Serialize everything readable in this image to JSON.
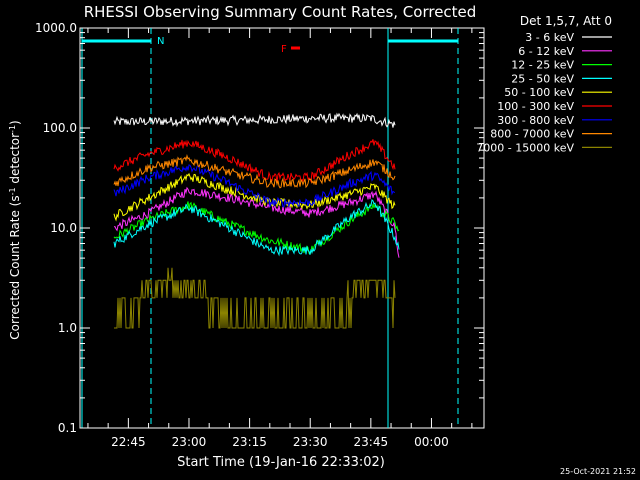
{
  "chart_data": {
    "type": "line",
    "title": "RHESSI Observing Summary Count Rates, Corrected",
    "xlabel": "Start Time (19-Jan-16 22:33:02)",
    "ylabel_main": "Corrected Count Rate (s",
    "ylabel_sup": "-1",
    "ylabel_end": " detector",
    "ylabel_sup2": "-1",
    "ylabel_close": ")",
    "y_scale": "log",
    "ylim": [
      0.1,
      1000
    ],
    "y_ticks": [
      {
        "value": 0.1,
        "label": "0.1"
      },
      {
        "value": 1,
        "label": "1.0"
      },
      {
        "value": 10,
        "label": "10.0"
      },
      {
        "value": 100,
        "label": "100.0"
      },
      {
        "value": 1000,
        "label": "1000.0"
      }
    ],
    "xlim": [
      "22:33:02",
      "00:13:00"
    ],
    "x_ticks": [
      "22:45",
      "23:00",
      "23:15",
      "23:30",
      "23:45",
      "00:00"
    ],
    "legend_header": "Det 1,5,7, Att 0",
    "legend_position": "top-right outside",
    "annotations": {
      "night": "N",
      "flare": "F"
    },
    "timestamp": "25-Oct-2021 21:52",
    "series": [
      {
        "name": "3 - 6 keV",
        "color": "#ffffff",
        "points": [
          [
            "22:41:30",
            115
          ],
          [
            "23:00",
            118
          ],
          [
            "23:15",
            120
          ],
          [
            "23:30",
            125
          ],
          [
            "23:45",
            125
          ],
          [
            "23:51",
            108
          ]
        ]
      },
      {
        "name": "6 - 12 keV",
        "color": "#ff33ff",
        "points": [
          [
            "22:41:30",
            10
          ],
          [
            "22:50",
            14
          ],
          [
            "23:00",
            24
          ],
          [
            "23:10",
            20
          ],
          [
            "23:20",
            16
          ],
          [
            "23:30",
            14
          ],
          [
            "23:40",
            18
          ],
          [
            "23:46",
            22
          ],
          [
            "23:51",
            10
          ],
          [
            "23:52",
            4.8
          ]
        ]
      },
      {
        "name": "12 - 25 keV",
        "color": "#00ff00",
        "points": [
          [
            "22:41:30",
            8
          ],
          [
            "22:50",
            12
          ],
          [
            "23:00",
            17
          ],
          [
            "23:10",
            11
          ],
          [
            "23:20",
            7.5
          ],
          [
            "23:30",
            6
          ],
          [
            "23:40",
            12
          ],
          [
            "23:46",
            17
          ],
          [
            "23:51",
            11
          ],
          [
            "23:52",
            9
          ]
        ]
      },
      {
        "name": "25 - 50 keV",
        "color": "#00ffff",
        "points": [
          [
            "22:41:30",
            7
          ],
          [
            "22:50",
            11
          ],
          [
            "23:00",
            16
          ],
          [
            "23:10",
            10
          ],
          [
            "23:20",
            6
          ],
          [
            "23:30",
            6
          ],
          [
            "23:40",
            13
          ],
          [
            "23:46",
            18
          ],
          [
            "23:51",
            8
          ],
          [
            "23:52",
            6
          ]
        ]
      },
      {
        "name": "50 - 100 keV",
        "color": "#ffff00",
        "points": [
          [
            "22:41:30",
            13
          ],
          [
            "22:50",
            20
          ],
          [
            "23:00",
            33
          ],
          [
            "23:10",
            24
          ],
          [
            "23:20",
            18
          ],
          [
            "23:30",
            17
          ],
          [
            "23:40",
            22
          ],
          [
            "23:46",
            26
          ],
          [
            "23:51",
            16
          ]
        ]
      },
      {
        "name": "100 - 300 keV",
        "color": "#ff0000",
        "points": [
          [
            "22:41:30",
            40
          ],
          [
            "22:50",
            55
          ],
          [
            "23:00",
            72
          ],
          [
            "23:10",
            50
          ],
          [
            "23:20",
            32
          ],
          [
            "23:30",
            32
          ],
          [
            "23:40",
            55
          ],
          [
            "23:46",
            72
          ],
          [
            "23:51",
            40
          ]
        ]
      },
      {
        "name": "300 - 800 keV",
        "color": "#0000ff",
        "points": [
          [
            "22:41:30",
            22
          ],
          [
            "22:50",
            32
          ],
          [
            "23:00",
            42
          ],
          [
            "23:10",
            28
          ],
          [
            "23:20",
            18
          ],
          [
            "23:30",
            18
          ],
          [
            "23:40",
            28
          ],
          [
            "23:46",
            34
          ],
          [
            "23:51",
            22
          ]
        ]
      },
      {
        "name": "800 - 7000 keV",
        "color": "#ff8800",
        "points": [
          [
            "22:41:30",
            28
          ],
          [
            "22:50",
            40
          ],
          [
            "23:00",
            48
          ],
          [
            "23:10",
            36
          ],
          [
            "23:20",
            28
          ],
          [
            "23:30",
            28
          ],
          [
            "23:40",
            38
          ],
          [
            "23:46",
            46
          ],
          [
            "23:51",
            32
          ]
        ]
      },
      {
        "name": "7000 - 15000 keV",
        "color": "#8c8400",
        "points": [
          [
            "22:41:30",
            1
          ],
          [
            "22:48",
            2
          ],
          [
            "22:55",
            3
          ],
          [
            "23:04",
            2
          ],
          [
            "23:10",
            1
          ],
          [
            "23:30",
            1
          ],
          [
            "23:40",
            2
          ],
          [
            "23:46",
            3
          ],
          [
            "23:51",
            2
          ]
        ]
      }
    ]
  }
}
